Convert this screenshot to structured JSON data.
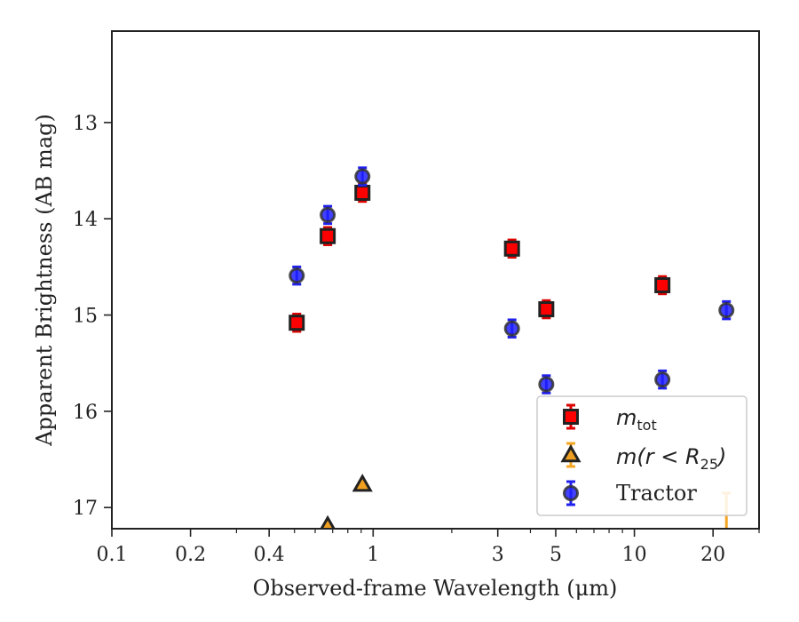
{
  "chart_data": {
    "type": "scatter",
    "xlabel": "Observed-frame Wavelength (μm)",
    "ylabel": "Apparent Brightness (AB mag)",
    "xscale": "log",
    "xlim": [
      0.1,
      30
    ],
    "ylim": [
      17.22,
      12.05
    ],
    "y_inverted": true,
    "x_ticks": [
      0.1,
      0.2,
      0.4,
      1,
      3,
      5,
      10,
      20
    ],
    "x_tick_labels": [
      "0.1",
      "0.2",
      "0.4",
      "1",
      "3",
      "5",
      "10",
      "20"
    ],
    "y_ticks": [
      13,
      14,
      15,
      16,
      17
    ],
    "y_tick_labels": [
      "13",
      "14",
      "15",
      "16",
      "17"
    ],
    "legend_position": "lower-right",
    "series": [
      {
        "key": "mtot",
        "legend_main": "m",
        "legend_sub": "tot",
        "marker": "square",
        "face_color": "#ff0000",
        "edge_color": "#222222",
        "err_color": "#dd0000",
        "points": [
          {
            "x": 0.51,
            "y": 15.08,
            "err": 0.09
          },
          {
            "x": 0.67,
            "y": 14.18,
            "err": 0.09
          },
          {
            "x": 0.91,
            "y": 13.73,
            "err": 0.09
          },
          {
            "x": 3.4,
            "y": 14.31,
            "err": 0.09
          },
          {
            "x": 4.6,
            "y": 14.94,
            "err": 0.09
          },
          {
            "x": 12.8,
            "y": 14.69,
            "err": 0.09
          }
        ]
      },
      {
        "key": "mr25",
        "legend_main": "m(r < R",
        "legend_sub": "25",
        "legend_close": ")",
        "marker": "triangle",
        "face_color": "#f0a020",
        "edge_color": "#222222",
        "err_color": "#f5a623",
        "points": [
          {
            "x": 0.67,
            "y": 17.19,
            "err": 0.0
          },
          {
            "x": 0.91,
            "y": 16.76,
            "err": 0.0
          },
          {
            "x": 22.5,
            "y": 17.35,
            "err": 0.5
          }
        ]
      },
      {
        "key": "tractor",
        "legend_main": "Tractor",
        "marker": "circle",
        "face_color": "#2020ff",
        "edge_color": "#333333",
        "err_color": "#2020ee",
        "points": [
          {
            "x": 0.51,
            "y": 14.59,
            "err": 0.09
          },
          {
            "x": 0.67,
            "y": 13.96,
            "err": 0.09
          },
          {
            "x": 0.91,
            "y": 13.56,
            "err": 0.09
          },
          {
            "x": 3.4,
            "y": 15.14,
            "err": 0.09
          },
          {
            "x": 4.6,
            "y": 15.72,
            "err": 0.09
          },
          {
            "x": 12.8,
            "y": 15.67,
            "err": 0.09
          },
          {
            "x": 22.5,
            "y": 14.95,
            "err": 0.09
          }
        ]
      }
    ]
  }
}
